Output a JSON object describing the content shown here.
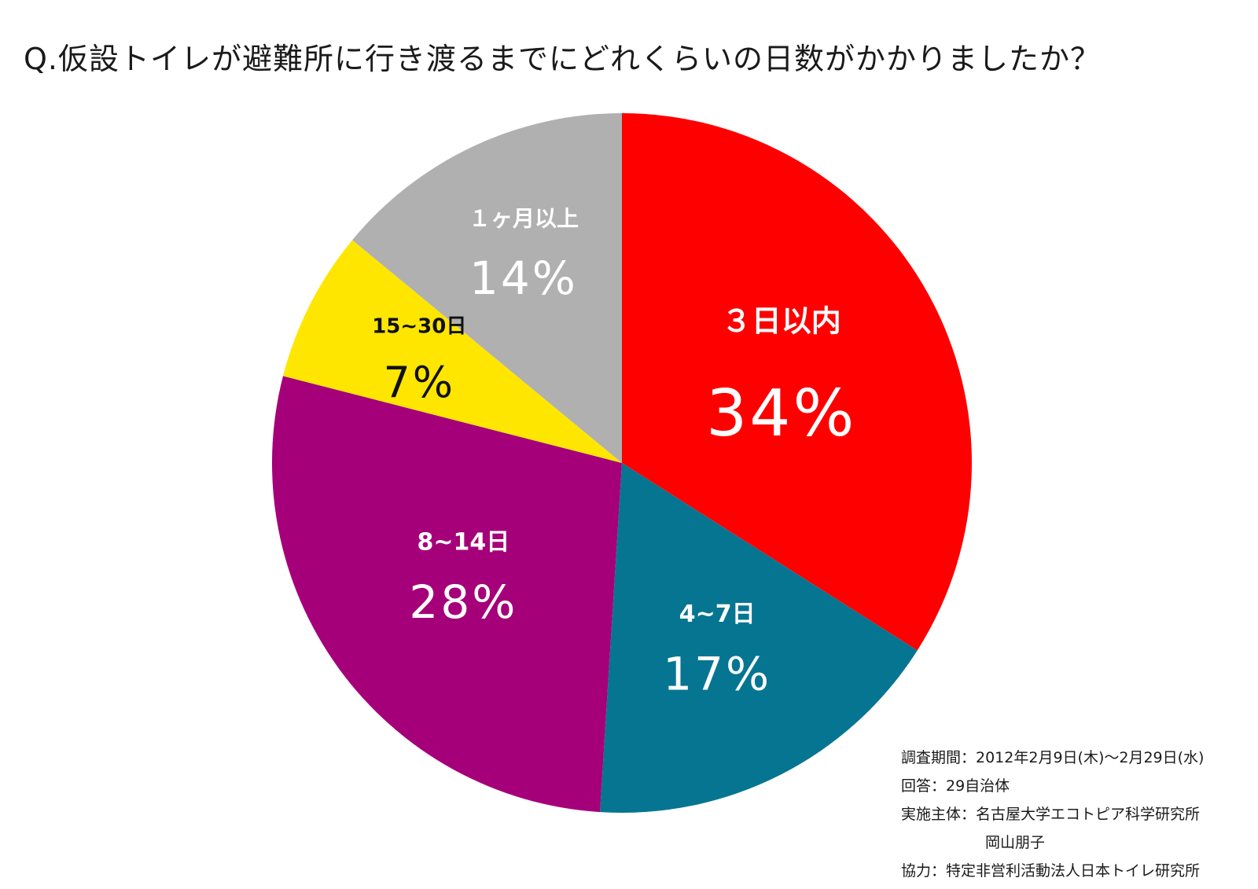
{
  "title": "Q.仮設トイレが避難所に行き渡るまでにどれくらいの日数がかかりましたか？",
  "chart_data": {
    "type": "pie",
    "title": "Q.仮設トイレが避難所に行き渡るまでにどれくらいの日数がかかりましたか？",
    "start": "12 o'clock",
    "direction": "clockwise",
    "slices": [
      {
        "label": "３日以内",
        "value": 34,
        "value_label": "34%",
        "color": "#ff0000",
        "text_color": "#ffffff"
      },
      {
        "label": "4~7日",
        "value": 17,
        "value_label": "17%",
        "color": "#067591",
        "text_color": "#ffffff"
      },
      {
        "label": "8~14日",
        "value": 28,
        "value_label": "28%",
        "color": "#a5007a",
        "text_color": "#ffffff"
      },
      {
        "label": "15~30日",
        "value": 7,
        "value_label": "7%",
        "color": "#ffe600",
        "text_color": "#111111"
      },
      {
        "label": "１ヶ月以上",
        "value": 14,
        "value_label": "14%",
        "color": "#b0b0b0",
        "text_color": "#ffffff"
      }
    ]
  },
  "notes": {
    "survey_period": "調査期間：2012年2月9日(木)～2月29日(水)",
    "responses": "回答：29自治体",
    "organizer": "実施主体：名古屋大学エコトピア科学研究所",
    "organizer_person": "岡山朋子",
    "cooperation": "協力：特定非営利活動法人日本トイレ研究所"
  }
}
